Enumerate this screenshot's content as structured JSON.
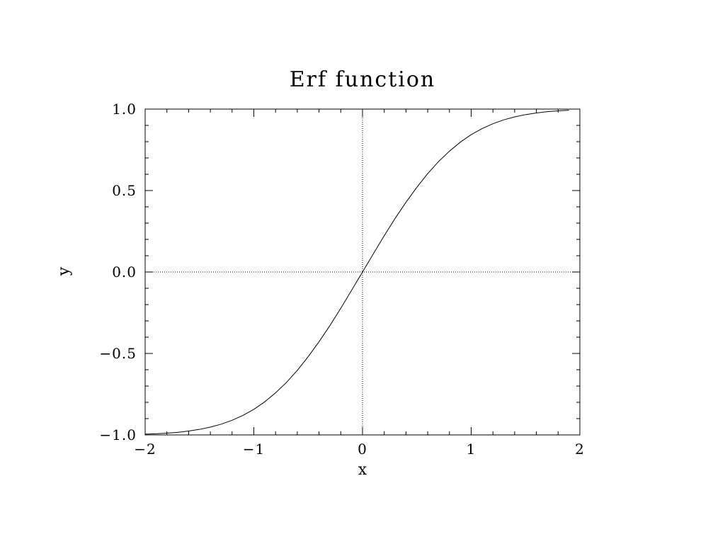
{
  "chart_data": {
    "type": "line",
    "title": "Erf function",
    "xlabel": "x",
    "ylabel": "y",
    "xlim": [
      -2,
      2
    ],
    "ylim": [
      -1,
      1
    ],
    "x_ticks": [
      -2,
      -1,
      0,
      1,
      2
    ],
    "x_tick_labels": [
      "−2",
      "−1",
      "0",
      "1",
      "2"
    ],
    "y_ticks": [
      -1,
      -0.5,
      0,
      0.5,
      1
    ],
    "y_tick_labels": [
      "−1.0",
      "−0.5",
      "0.0",
      "0.5",
      "1.0"
    ],
    "reference_lines": {
      "x": 0,
      "y": 0,
      "style": "dotted"
    },
    "grid": false,
    "series": [
      {
        "x": [
          -2.0,
          -1.9,
          -1.8,
          -1.7,
          -1.6,
          -1.5,
          -1.4,
          -1.3,
          -1.2,
          -1.1,
          -1.0,
          -0.9,
          -0.8,
          -0.7,
          -0.6,
          -0.5,
          -0.4,
          -0.3,
          -0.2,
          -0.1,
          0.0,
          0.1,
          0.2,
          0.3,
          0.4,
          0.5,
          0.6,
          0.7,
          0.8,
          0.9,
          1.0,
          1.1,
          1.2,
          1.3,
          1.4,
          1.5,
          1.6,
          1.7,
          1.8,
          1.9
        ],
        "y": [
          -0.995,
          -0.993,
          -0.989,
          -0.984,
          -0.976,
          -0.966,
          -0.952,
          -0.934,
          -0.91,
          -0.88,
          -0.843,
          -0.797,
          -0.742,
          -0.678,
          -0.604,
          -0.52,
          -0.428,
          -0.329,
          -0.223,
          -0.112,
          0.0,
          0.112,
          0.223,
          0.329,
          0.428,
          0.52,
          0.604,
          0.678,
          0.742,
          0.797,
          0.843,
          0.88,
          0.91,
          0.934,
          0.952,
          0.966,
          0.976,
          0.984,
          0.989,
          0.993
        ]
      }
    ]
  }
}
